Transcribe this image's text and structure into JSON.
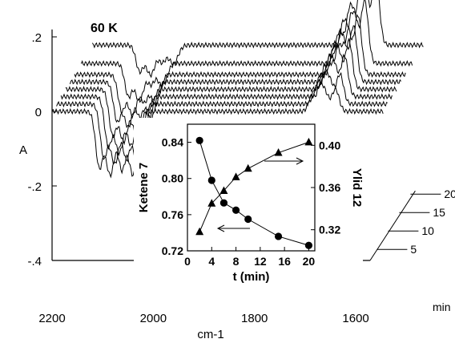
{
  "chart_data": [
    {
      "type": "line",
      "title": "60 K",
      "xlabel": "cm-1",
      "ylabel": "A",
      "depth_label": "min",
      "x_ticks": [
        "2200",
        "2000",
        "1800",
        "1600"
      ],
      "y_ticks": [
        ".2",
        "0",
        "-.2",
        "-.4"
      ],
      "depth_ticks": [
        "5",
        "10",
        "15",
        "20"
      ],
      "xlim": [
        2200,
        1540
      ],
      "ylim": [
        -0.4,
        0.22
      ],
      "depth_range": [
        2,
        20
      ],
      "series": [
        {
          "depth": 2,
          "neg_bands": [
            {
              "x": 2085,
              "y": -0.17
            },
            {
              "x": 2040,
              "y": -0.17
            }
          ],
          "pos_bands": [
            {
              "x": 1670,
              "y": 0.07
            },
            {
              "x": 1640,
              "y": 0.06
            }
          ]
        },
        {
          "depth": 4,
          "neg_bands": [
            {
              "x": 2085,
              "y": -0.16
            },
            {
              "x": 2040,
              "y": -0.16
            }
          ],
          "pos_bands": [
            {
              "x": 1670,
              "y": 0.08
            },
            {
              "x": 1640,
              "y": 0.08
            }
          ]
        },
        {
          "depth": 6,
          "neg_bands": [
            {
              "x": 2085,
              "y": -0.15
            },
            {
              "x": 2040,
              "y": -0.14
            }
          ],
          "pos_bands": [
            {
              "x": 1670,
              "y": 0.1
            },
            {
              "x": 1640,
              "y": 0.11
            }
          ]
        },
        {
          "depth": 8,
          "neg_bands": [
            {
              "x": 2085,
              "y": -0.14
            },
            {
              "x": 2040,
              "y": -0.12
            }
          ],
          "pos_bands": [
            {
              "x": 1670,
              "y": 0.11
            },
            {
              "x": 1640,
              "y": 0.13
            }
          ]
        },
        {
          "depth": 10,
          "neg_bands": [
            {
              "x": 2085,
              "y": -0.12
            },
            {
              "x": 2040,
              "y": -0.1
            }
          ],
          "pos_bands": [
            {
              "x": 1670,
              "y": 0.12
            },
            {
              "x": 1640,
              "y": 0.15
            }
          ]
        },
        {
          "depth": 12,
          "neg_bands": [
            {
              "x": 2085,
              "y": -0.11
            },
            {
              "x": 2040,
              "y": -0.08
            }
          ],
          "pos_bands": [
            {
              "x": 1670,
              "y": 0.13
            },
            {
              "x": 1640,
              "y": 0.16
            }
          ]
        },
        {
          "depth": 15,
          "neg_bands": [
            {
              "x": 2085,
              "y": -0.1
            },
            {
              "x": 2040,
              "y": -0.06
            }
          ],
          "pos_bands": [
            {
              "x": 1670,
              "y": 0.14
            },
            {
              "x": 1640,
              "y": 0.17
            }
          ]
        },
        {
          "depth": 20,
          "neg_bands": [
            {
              "x": 2085,
              "y": -0.08
            },
            {
              "x": 2040,
              "y": -0.05
            }
          ],
          "pos_bands": [
            {
              "x": 1670,
              "y": 0.15
            },
            {
              "x": 1640,
              "y": 0.18
            }
          ]
        }
      ]
    },
    {
      "type": "scatter",
      "xlabel": "t (min)",
      "ylabel": "Ketene 7",
      "ylabel_right": "Ylid 12",
      "xlim": [
        0,
        21
      ],
      "ylim": [
        0.72,
        0.86
      ],
      "ylim_right": [
        0.3,
        0.42
      ],
      "x_ticks": [
        "0",
        "4",
        "8",
        "12",
        "16",
        "20"
      ],
      "y_ticks": [
        "0.72",
        "0.76",
        "0.80",
        "0.84"
      ],
      "y_ticks_right": [
        "0.32",
        "0.36",
        "0.40"
      ],
      "series": [
        {
          "marker": "circle",
          "axis": "left",
          "x": [
            2,
            4,
            6,
            8,
            10,
            15,
            20
          ],
          "y": [
            0.842,
            0.798,
            0.773,
            0.765,
            0.755,
            0.736,
            0.726
          ]
        },
        {
          "marker": "triangle",
          "axis": "right",
          "x": [
            2,
            4,
            6,
            8,
            10,
            15,
            20
          ],
          "y": [
            0.318,
            0.345,
            0.357,
            0.37,
            0.378,
            0.393,
            0.403
          ]
        }
      ]
    }
  ]
}
